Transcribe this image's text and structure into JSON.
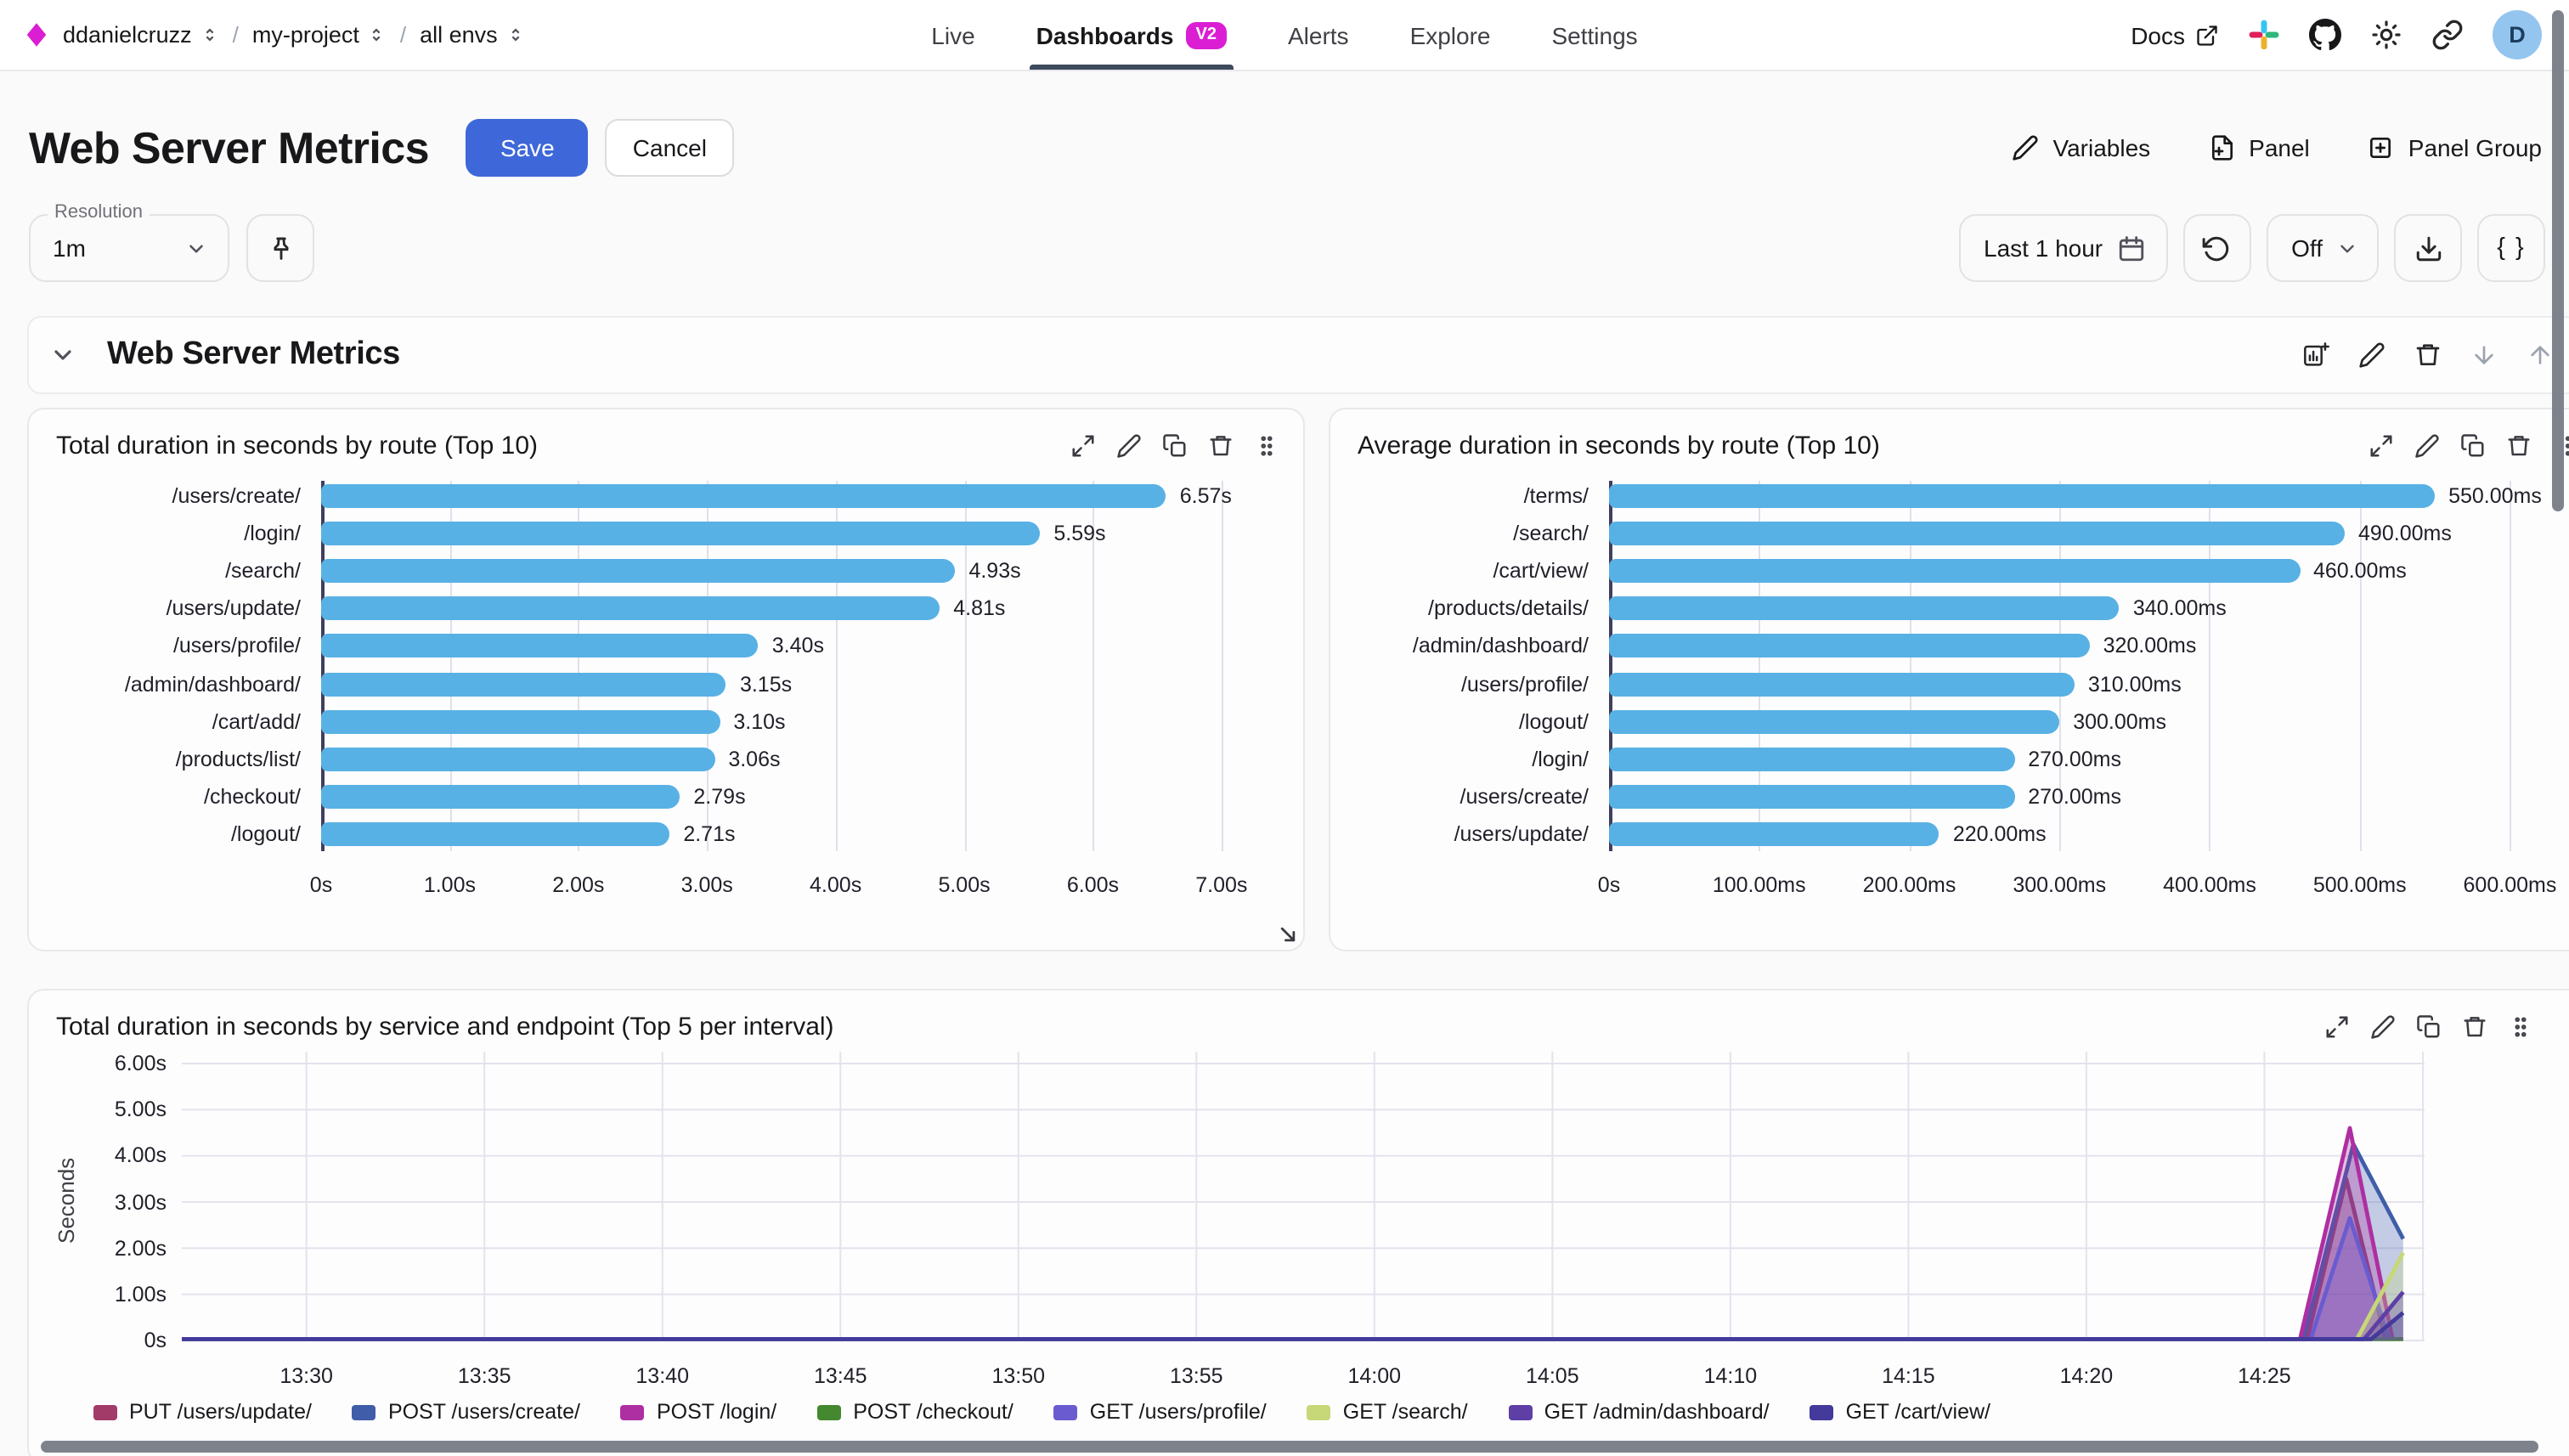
{
  "nav": {
    "breadcrumbs": [
      {
        "label": "ddanielcruzz"
      },
      {
        "label": "my-project"
      },
      {
        "label": "all envs"
      }
    ],
    "tabs": [
      {
        "label": "Live"
      },
      {
        "label": "Dashboards",
        "badge": "V2"
      },
      {
        "label": "Alerts"
      },
      {
        "label": "Explore"
      },
      {
        "label": "Settings"
      }
    ],
    "docs_label": "Docs",
    "avatar_letter": "D"
  },
  "header": {
    "title": "Web Server Metrics",
    "save_label": "Save",
    "cancel_label": "Cancel",
    "variables_label": "Variables",
    "panel_label": "Panel",
    "panel_group_label": "Panel Group"
  },
  "toolbar": {
    "resolution_label": "Resolution",
    "resolution_value": "1m",
    "time_range": "Last 1 hour",
    "refresh_mode": "Off",
    "braces_label": "{ }"
  },
  "section": {
    "title": "Web Server Metrics"
  },
  "colors": {
    "accent_magenta": "#db1ed3",
    "save_blue": "#3e68d9",
    "bar_blue": "#58b1e4",
    "tab_underline": "#3d4a5c"
  },
  "chart_data": [
    {
      "type": "bar",
      "orientation": "horizontal",
      "title": "Total duration in seconds by route (Top 10)",
      "categories": [
        "/users/create/",
        "/login/",
        "/search/",
        "/users/update/",
        "/users/profile/",
        "/admin/dashboard/",
        "/cart/add/",
        "/products/list/",
        "/checkout/",
        "/logout/"
      ],
      "values": [
        6.57,
        5.59,
        4.93,
        4.81,
        3.4,
        3.15,
        3.1,
        3.06,
        2.79,
        2.71
      ],
      "value_labels": [
        "6.57s",
        "5.59s",
        "4.93s",
        "4.81s",
        "3.40s",
        "3.15s",
        "3.10s",
        "3.06s",
        "2.79s",
        "2.71s"
      ],
      "x_ticks": [
        {
          "v": 0,
          "label": "0s"
        },
        {
          "v": 1,
          "label": "1.00s"
        },
        {
          "v": 2,
          "label": "2.00s"
        },
        {
          "v": 3,
          "label": "3.00s"
        },
        {
          "v": 4,
          "label": "4.00s"
        },
        {
          "v": 5,
          "label": "5.00s"
        },
        {
          "v": 6,
          "label": "6.00s"
        },
        {
          "v": 7,
          "label": "7.00s"
        }
      ],
      "axis_max": 7.45,
      "bar_color": "#58b1e4",
      "xlabel": "",
      "ylabel": "",
      "grid": true
    },
    {
      "type": "bar",
      "orientation": "horizontal",
      "title": "Average duration in seconds by route (Top 10)",
      "categories": [
        "/terms/",
        "/search/",
        "/cart/view/",
        "/products/details/",
        "/admin/dashboard/",
        "/users/profile/",
        "/logout/",
        "/login/",
        "/users/create/",
        "/users/update/"
      ],
      "values": [
        550,
        490,
        460,
        340,
        320,
        310,
        300,
        270,
        270,
        220
      ],
      "value_labels": [
        "550.00ms",
        "490.00ms",
        "460.00ms",
        "340.00ms",
        "320.00ms",
        "310.00ms",
        "300.00ms",
        "270.00ms",
        "270.00ms",
        "220.00ms"
      ],
      "x_ticks": [
        {
          "v": 0,
          "label": "0s"
        },
        {
          "v": 100,
          "label": "100.00ms"
        },
        {
          "v": 200,
          "label": "200.00ms"
        },
        {
          "v": 300,
          "label": "300.00ms"
        },
        {
          "v": 400,
          "label": "400.00ms"
        },
        {
          "v": 500,
          "label": "500.00ms"
        },
        {
          "v": 600,
          "label": "600.00ms"
        }
      ],
      "axis_max": 645,
      "bar_color": "#58b1e4",
      "xlabel": "",
      "ylabel": "",
      "grid": true
    },
    {
      "type": "area",
      "title": "Total duration in seconds by service and endpoint (Top 5 per interval)",
      "ylabel": "Seconds",
      "y_ticks": [
        {
          "v": 0,
          "label": "0s"
        },
        {
          "v": 1,
          "label": "1.00s"
        },
        {
          "v": 2,
          "label": "2.00s"
        },
        {
          "v": 3,
          "label": "3.00s"
        },
        {
          "v": 4,
          "label": "4.00s"
        },
        {
          "v": 5,
          "label": "5.00s"
        },
        {
          "v": 6,
          "label": "6.00s"
        }
      ],
      "y_max": 6.4,
      "x_start_min": 806.5,
      "x_end_min": 869.5,
      "x_ticks": [
        {
          "min": 810,
          "label": "13:30"
        },
        {
          "min": 815,
          "label": "13:35"
        },
        {
          "min": 820,
          "label": "13:40"
        },
        {
          "min": 825,
          "label": "13:45"
        },
        {
          "min": 830,
          "label": "13:50"
        },
        {
          "min": 835,
          "label": "13:55"
        },
        {
          "min": 840,
          "label": "14:00"
        },
        {
          "min": 845,
          "label": "14:05"
        },
        {
          "min": 850,
          "label": "14:10"
        },
        {
          "min": 855,
          "label": "14:15"
        },
        {
          "min": 860,
          "label": "14:20"
        },
        {
          "min": 865,
          "label": "14:25"
        }
      ],
      "grid": true,
      "legend_position": "bottom",
      "series": [
        {
          "name": "PUT /users/update/",
          "color": "#a23b67",
          "points": [
            [
              806.5,
              0.03
            ],
            [
              866.2,
              0.03
            ],
            [
              867.3,
              3.5
            ],
            [
              868.4,
              0.04
            ]
          ]
        },
        {
          "name": "POST /users/create/",
          "color": "#3f5da8",
          "points": [
            [
              806.5,
              0.03
            ],
            [
              866.1,
              0.03
            ],
            [
              867.5,
              4.25
            ],
            [
              868.9,
              2.2
            ]
          ]
        },
        {
          "name": "POST /login/",
          "color": "#ae2fa2",
          "points": [
            [
              806.5,
              0.03
            ],
            [
              866.0,
              0.03
            ],
            [
              867.4,
              4.6
            ],
            [
              868.6,
              0.04
            ]
          ]
        },
        {
          "name": "POST /checkout/",
          "color": "#44882f",
          "points": [
            [
              806.5,
              0.03
            ],
            [
              868.9,
              0.03
            ]
          ]
        },
        {
          "name": "GET /users/profile/",
          "color": "#6a5bd0",
          "points": [
            [
              806.5,
              0.03
            ],
            [
              866.3,
              0.03
            ],
            [
              867.4,
              2.65
            ],
            [
              868.5,
              0.04
            ]
          ]
        },
        {
          "name": "GET /search/",
          "color": "#c6d877",
          "points": [
            [
              806.5,
              0.03
            ],
            [
              867.6,
              0.03
            ],
            [
              868.9,
              1.9
            ]
          ]
        },
        {
          "name": "GET /admin/dashboard/",
          "color": "#5d3fa6",
          "points": [
            [
              806.5,
              0.03
            ],
            [
              867.8,
              0.03
            ],
            [
              868.9,
              1.05
            ]
          ]
        },
        {
          "name": "GET /cart/view/",
          "color": "#433a9c",
          "points": [
            [
              806.5,
              0.03
            ],
            [
              868.0,
              0.03
            ],
            [
              868.9,
              0.6
            ]
          ]
        }
      ]
    }
  ]
}
